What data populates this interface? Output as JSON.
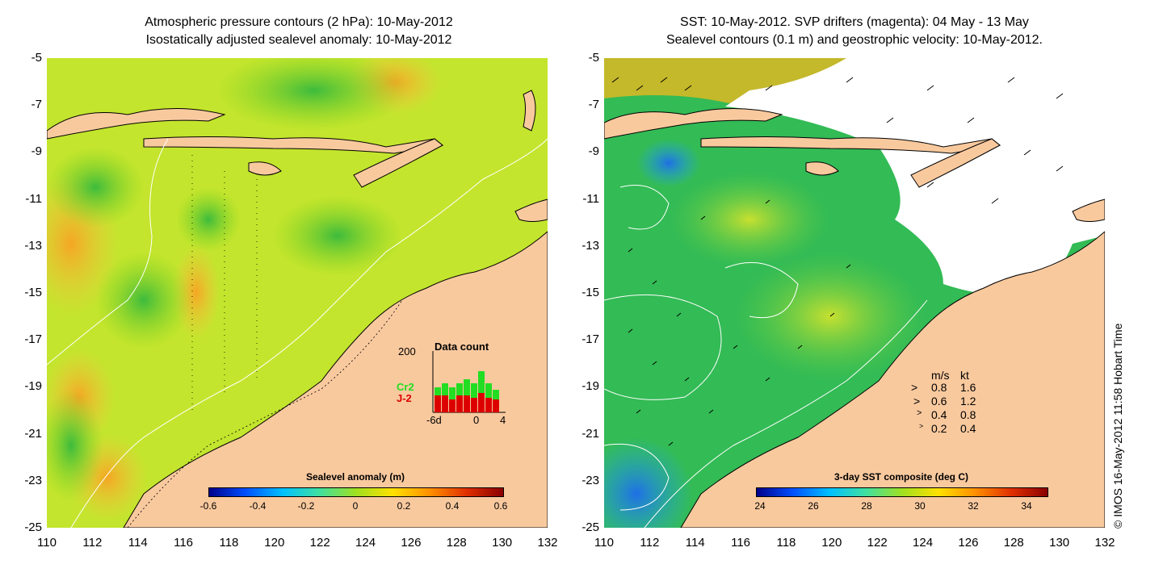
{
  "left_panel": {
    "title_line1": "Atmospheric pressure contours (2 hPa): 10-May-2012",
    "title_line2": "Isostatically adjusted sealevel anomaly: 10-May-2012",
    "colorbar_title": "Sealevel anomaly (m)",
    "colorbar_ticks": [
      "-0.6",
      "-0.4",
      "-0.2",
      "0",
      "0.2",
      "0.4",
      "0.6"
    ],
    "inset": {
      "title": "Data count",
      "y_max_label": "200",
      "x_labels": [
        "-6d",
        "0",
        "4"
      ],
      "legend_cr2": "Cr2",
      "legend_j2": "J-2",
      "cr2_color": "#22dd22",
      "j2_color": "#dd0000"
    }
  },
  "right_panel": {
    "title_line1": "SST: 10-May-2012. SVP drifters (magenta): 04 May - 13 May",
    "title_line2": "Sealevel contours (0.1 m) and geostrophic velocity: 10-May-2012.",
    "colorbar_title": "3-day SST composite (deg C)",
    "colorbar_ticks": [
      "24",
      "26",
      "28",
      "30",
      "32",
      "34"
    ],
    "speed_legend": {
      "header_ms": "m/s",
      "header_kt": "kt",
      "rows": [
        {
          "ms": "0.8",
          "kt": "1.6"
        },
        {
          "ms": "0.6",
          "kt": "1.2"
        },
        {
          "ms": "0.4",
          "kt": "0.8"
        },
        {
          "ms": "0.2",
          "kt": "0.4"
        }
      ]
    }
  },
  "axes": {
    "y_labels": [
      "-5",
      "-7",
      "-9",
      "-11",
      "-13",
      "-15",
      "-17",
      "-19",
      "-21",
      "-23",
      "-25"
    ],
    "x_labels": [
      "110",
      "112",
      "114",
      "116",
      "118",
      "120",
      "122",
      "124",
      "126",
      "128",
      "130",
      "132"
    ]
  },
  "credit": "© IMOS 16-May-2012 11:58 Hobart Time",
  "colors": {
    "land": "#f9c99e",
    "ocean_green": "#7ed321",
    "ocean_yellowgreen": "#c8ea2a",
    "ocean_orange": "#f5b324",
    "sst_green": "#33cc44",
    "sst_blue": "#1e88e5"
  }
}
